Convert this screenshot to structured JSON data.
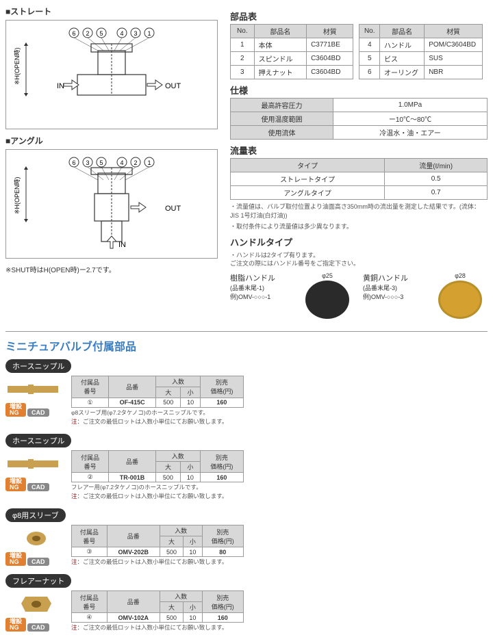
{
  "diagrams": {
    "straight_label": "■ストレート",
    "angle_label": "■アングル",
    "shut_note": "※SHUT時はH(OPEN時)ー2.7です。",
    "in": "IN",
    "out": "OUT",
    "h_label": "※H(OPEN時)",
    "callouts": [
      "6",
      "2",
      "5",
      "4",
      "3",
      "1"
    ],
    "callouts2": [
      "6",
      "3",
      "5",
      "4",
      "2",
      "1"
    ]
  },
  "parts": {
    "title": "部品表",
    "cols": [
      "No.",
      "部品名",
      "材質"
    ],
    "left": [
      [
        "1",
        "本体",
        "C3771BE"
      ],
      [
        "2",
        "スピンドル",
        "C3604BD"
      ],
      [
        "3",
        "押えナット",
        "C3604BD"
      ]
    ],
    "right": [
      [
        "4",
        "ハンドル",
        "POM/C3604BD"
      ],
      [
        "5",
        "ビス",
        "SUS"
      ],
      [
        "6",
        "オーリング",
        "NBR"
      ]
    ]
  },
  "spec": {
    "title": "仕様",
    "rows": [
      [
        "最高許容圧力",
        "1.0MPa"
      ],
      [
        "使用温度範囲",
        "ー10℃〜80℃"
      ],
      [
        "使用流体",
        "冷温水・油・エアー"
      ]
    ]
  },
  "flow": {
    "title": "流量表",
    "cols": [
      "タイプ",
      "流量(ℓ/min)"
    ],
    "rows": [
      [
        "ストレートタイプ",
        "0.5"
      ],
      [
        "アングルタイプ",
        "0.7"
      ]
    ],
    "note1": "・流量値は、バルブ取付位置より油面高さ350mm時の流出量を測定した結果です。(流体：JIS 1号灯油(白灯油))",
    "note2": "・取付条件により流量値は多少異なります。"
  },
  "handle": {
    "title": "ハンドルタイプ",
    "note": "・ハンドルは2タイプ有ります。\nご注文の際にはハンドル番号をご指定下さい。",
    "resin": {
      "dim": "φ25",
      "name": "樹脂ハンドル",
      "sub": "(品番末尾-1)",
      "ex": "例)OMV-○○○-1"
    },
    "brass": {
      "dim": "φ28",
      "name": "黄銅ハンドル",
      "sub": "(品番末尾-3)",
      "ex": "例)OMV-○○○-3"
    }
  },
  "acc": {
    "title": "ミニチュアバルブ付属部品",
    "labels": {
      "hose": "ホースニップル",
      "sleeve": "φ8用スリーブ",
      "flare": "フレアーナット"
    },
    "th": [
      "付属品\n番号",
      "品番",
      "入数",
      "別売\n価格(円)"
    ],
    "th_sub": [
      "大",
      "小"
    ],
    "badges": {
      "ng": "増設\nNG",
      "cad": "CAD"
    },
    "items": [
      {
        "no": "①",
        "code": "OF-415C",
        "big": "500",
        "small": "10",
        "price": "160",
        "note": "φ8スリーブ用(φ7.2タケノコ)のホースニップルです。",
        "warn": "注：ご注文の最低ロットは入数小単位にてお願い致します。"
      },
      {
        "no": "②",
        "code": "TR-001B",
        "big": "500",
        "small": "10",
        "price": "160",
        "note": "フレアー用(φ7.2タケノコ)のホースニップルです。",
        "warn": "注：ご注文の最低ロットは入数小単位にてお願い致します。"
      },
      {
        "no": "③",
        "code": "OMV-202B",
        "big": "500",
        "small": "10",
        "price": "80",
        "warn": "注：ご注文の最低ロットは入数小単位にてお願い致します。"
      },
      {
        "no": "④",
        "code": "OMV-102A",
        "big": "500",
        "small": "10",
        "price": "160",
        "warn": "注：ご注文の最低ロットは入数小単位にてお願い致します。"
      }
    ]
  }
}
